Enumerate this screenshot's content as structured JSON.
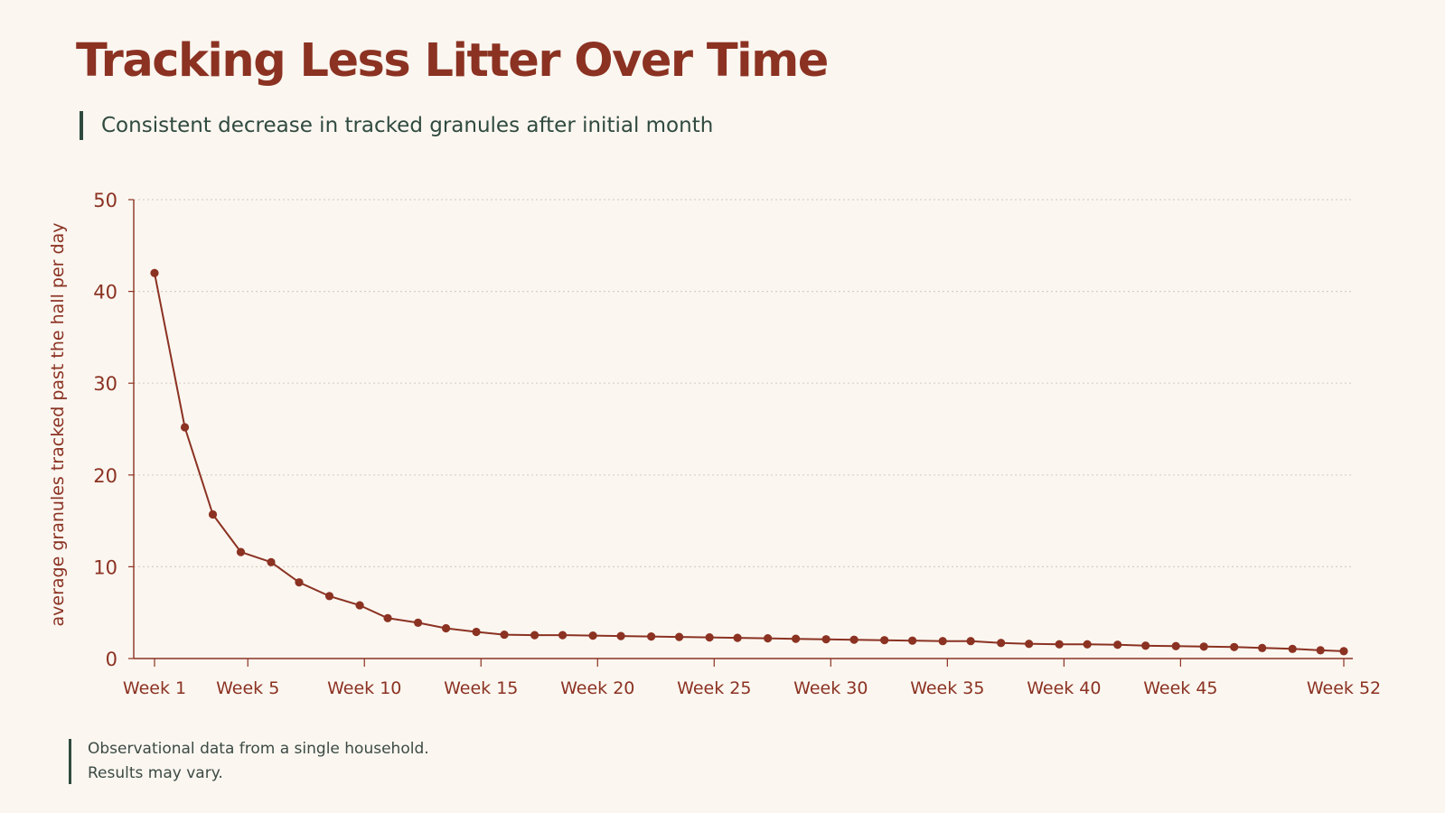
{
  "header": {
    "title": "Tracking Less Litter Over Time",
    "subtitle": "Consistent decrease in tracked granules after initial month"
  },
  "footnote": {
    "line1": "Observational data from a single household.",
    "line2": "Results may vary."
  },
  "colors": {
    "background": "#fbf6f0",
    "accent": "#8b3222",
    "text_dark": "#2f4a3f",
    "grid": "#d9cfc8"
  },
  "chart_data": {
    "type": "line",
    "title": "Tracking Less Litter Over Time",
    "subtitle": "Consistent decrease in tracked granules after initial month",
    "xlabel": "",
    "ylabel": "average granules tracked past the hall per day",
    "ylim": [
      0,
      50
    ],
    "yticks": [
      0,
      10,
      20,
      30,
      40,
      50
    ],
    "xtick_labels": [
      {
        "week": 1,
        "label": "Week 1"
      },
      {
        "week": 5,
        "label": "Week 5"
      },
      {
        "week": 10,
        "label": "Week 10"
      },
      {
        "week": 15,
        "label": "Week 15"
      },
      {
        "week": 20,
        "label": "Week 20"
      },
      {
        "week": 25,
        "label": "Week 25"
      },
      {
        "week": 30,
        "label": "Week 30"
      },
      {
        "week": 35,
        "label": "Week 35"
      },
      {
        "week": 40,
        "label": "Week 40"
      },
      {
        "week": 45,
        "label": "Week 45"
      },
      {
        "week": 52,
        "label": "Week 52"
      }
    ],
    "grid": "horizontal dotted",
    "legend": "none",
    "x": [
      1,
      2.3,
      3.5,
      4.7,
      6,
      7.2,
      8.5,
      9.8,
      11,
      12.3,
      13.5,
      14.8,
      16,
      17.3,
      18.5,
      19.8,
      21,
      22.3,
      23.5,
      24.8,
      26,
      27.3,
      28.5,
      29.8,
      31,
      32.3,
      33.5,
      34.8,
      36,
      37.3,
      38.5,
      39.8,
      41,
      42.3,
      43.5,
      44.8,
      46,
      47.3,
      48.5,
      49.8,
      51,
      52
    ],
    "y": [
      42.0,
      25.2,
      15.7,
      11.6,
      10.5,
      8.3,
      6.8,
      5.8,
      4.4,
      3.9,
      3.3,
      2.9,
      2.6,
      2.55,
      2.55,
      2.5,
      2.45,
      2.4,
      2.35,
      2.3,
      2.25,
      2.2,
      2.15,
      2.1,
      2.05,
      2.0,
      1.95,
      1.9,
      1.9,
      1.7,
      1.6,
      1.55,
      1.55,
      1.5,
      1.4,
      1.35,
      1.3,
      1.25,
      1.15,
      1.05,
      0.9,
      0.8
    ]
  }
}
